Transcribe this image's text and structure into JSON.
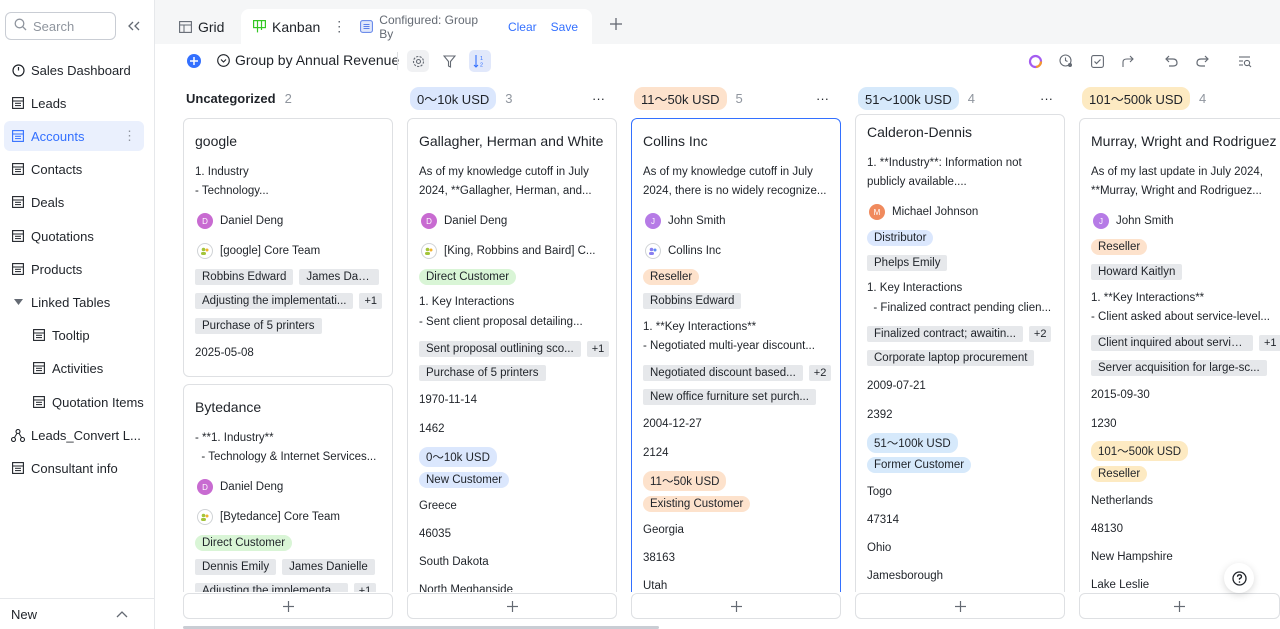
{
  "sidebar": {
    "search_placeholder": "Search",
    "items": [
      {
        "label": "Sales Dashboard"
      },
      {
        "label": "Leads"
      },
      {
        "label": "Accounts"
      },
      {
        "label": "Contacts"
      },
      {
        "label": "Deals"
      },
      {
        "label": "Quotations"
      },
      {
        "label": "Products"
      },
      {
        "label": "Linked Tables"
      },
      {
        "label": "Tooltip"
      },
      {
        "label": "Activities"
      },
      {
        "label": "Quotation Items"
      },
      {
        "label": "Leads_Convert L..."
      },
      {
        "label": "Consultant info"
      }
    ],
    "new_label": "New"
  },
  "tabs": {
    "grid": "Grid",
    "kanban": "Kanban",
    "configured": "Configured: Group By",
    "clear": "Clear",
    "save": "Save"
  },
  "toolbar": {
    "group_label": "Group by Annual Revenue"
  },
  "columns": [
    {
      "name": "Uncategorized",
      "count": "2"
    },
    {
      "name": "0～10k USD",
      "count": "3",
      "color": "#dbe7fd"
    },
    {
      "name": "11～50k USD",
      "count": "5",
      "color": "#fde2cc"
    },
    {
      "name": "51～100k USD",
      "count": "4",
      "color": "#d6e9fb"
    },
    {
      "name": "101～500k USD",
      "count": "4",
      "color": "#fdeac2"
    }
  ],
  "cards": {
    "c1": {
      "title": "google",
      "l1": "1. Industry",
      "l2": "- Technology...",
      "owner": "Daniel Deng",
      "owner_initial": "D",
      "team": "[google] Core Team",
      "tag1": "Robbins Edward",
      "tag2": "James Dan...",
      "tag3": "Adjusting the implementati...",
      "tag3_more": "+1",
      "tag4": "Purchase of 5 printers",
      "date": "2025-05-08"
    },
    "c1b": {
      "title": "Bytedance",
      "l1": "- **1. Industry**",
      "l2": "  - Technology & Internet Services...",
      "owner": "Daniel Deng",
      "owner_initial": "D",
      "team": "[Bytedance] Core Team",
      "chip": "Direct Customer",
      "tag1": "Dennis Emily",
      "tag2": "James Danielle",
      "tag3": "Adjusting the implementa...",
      "tag3_more": "+1"
    },
    "c2": {
      "title": "Gallagher, Herman and White",
      "l1": "As of my knowledge cutoff in July",
      "l2": "2024, **Gallagher, Herman, and...",
      "owner": "Daniel Deng",
      "owner_initial": "D",
      "team": "[King, Robbins and Baird] C...",
      "chip": "Direct Customer",
      "l3": "1. Key Interactions",
      "l4": "- Sent client proposal detailing...",
      "tag1": "Sent proposal outlining sco...",
      "tag1_more": "+1",
      "tag2": "Purchase of 5 printers",
      "date": "1970-11-14",
      "num": "1462",
      "rev": "0～10k USD",
      "ctype": "New Customer",
      "country": "Greece",
      "zip": "46035",
      "state": "South Dakota",
      "city": "North Meghanside"
    },
    "c3": {
      "title": "Collins Inc",
      "l1": "As of my knowledge cutoff in July",
      "l2": "2024, there is no widely recognize...",
      "owner": "John Smith",
      "owner_initial": "J",
      "team": "Collins Inc",
      "chip": "Reseller",
      "tag0": "Robbins Edward",
      "l3": "1. **Key Interactions**",
      "l4": "- Negotiated multi-year discount...",
      "tag1": "Negotiated discount based...",
      "tag1_more": "+2",
      "tag2": "New office furniture set purch...",
      "date": "2004-12-27",
      "num": "2124",
      "rev": "11～50k USD",
      "ctype": "Existing Customer",
      "country": "Georgia",
      "zip": "38163",
      "state": "Utah"
    },
    "c4": {
      "title": "Calderon-Dennis",
      "l1": "1. **Industry**: Information not",
      "l2": "publicly available....",
      "owner": "Michael Johnson",
      "owner_initial": "M",
      "chip": "Distributor",
      "tag0": "Phelps Emily",
      "l3": "1. Key Interactions",
      "l4": "  - Finalized contract pending clien...",
      "tag1": "Finalized contract; awaitin...",
      "tag1_more": "+2",
      "tag2": "Corporate laptop procurement",
      "date": "2009-07-21",
      "num": "2392",
      "rev": "51～100k USD",
      "ctype": "Former Customer",
      "country": "Togo",
      "zip": "47314",
      "state": "Ohio",
      "city": "Jamesborough"
    },
    "c5": {
      "title": "Murray, Wright and Rodriguez",
      "l1": "As of my last update in July 2024,",
      "l2": "**Murray, Wright and Rodriguez...",
      "owner": "John Smith",
      "owner_initial": "J",
      "chip": "Reseller",
      "tag0": "Howard Kaitlyn",
      "l3": "1. **Key Interactions**",
      "l4": "- Client asked about service-level...",
      "tag1": "Client inquired about servic...",
      "tag1_more": "+1",
      "tag2": "Server acquisition for large-sc...",
      "date": "2015-09-30",
      "num": "1230",
      "rev": "101～500k USD",
      "ctype": "Reseller",
      "country": "Netherlands",
      "zip": "48130",
      "state": "New Hampshire",
      "city": "Lake Leslie"
    }
  },
  "colors": {
    "accent": "#3370ff",
    "active_bg": "#eaf0fd",
    "direct_customer": "#d9f5d6",
    "reseller": "#fde2cc",
    "distributor": "#dbe7fd",
    "new_customer": "#dbe7fd",
    "existing_customer": "#fde2cc",
    "former_customer": "#d6e9fb"
  },
  "icons": [
    "search-icon",
    "collapse-icon",
    "dashboard-icon",
    "table-icon",
    "linked-icon",
    "grid-icon",
    "kanban-icon",
    "more-icon",
    "add-icon",
    "settings-icon",
    "filter-icon",
    "sort-icon",
    "undo-icon",
    "redo-icon",
    "share-icon",
    "help-icon"
  ]
}
